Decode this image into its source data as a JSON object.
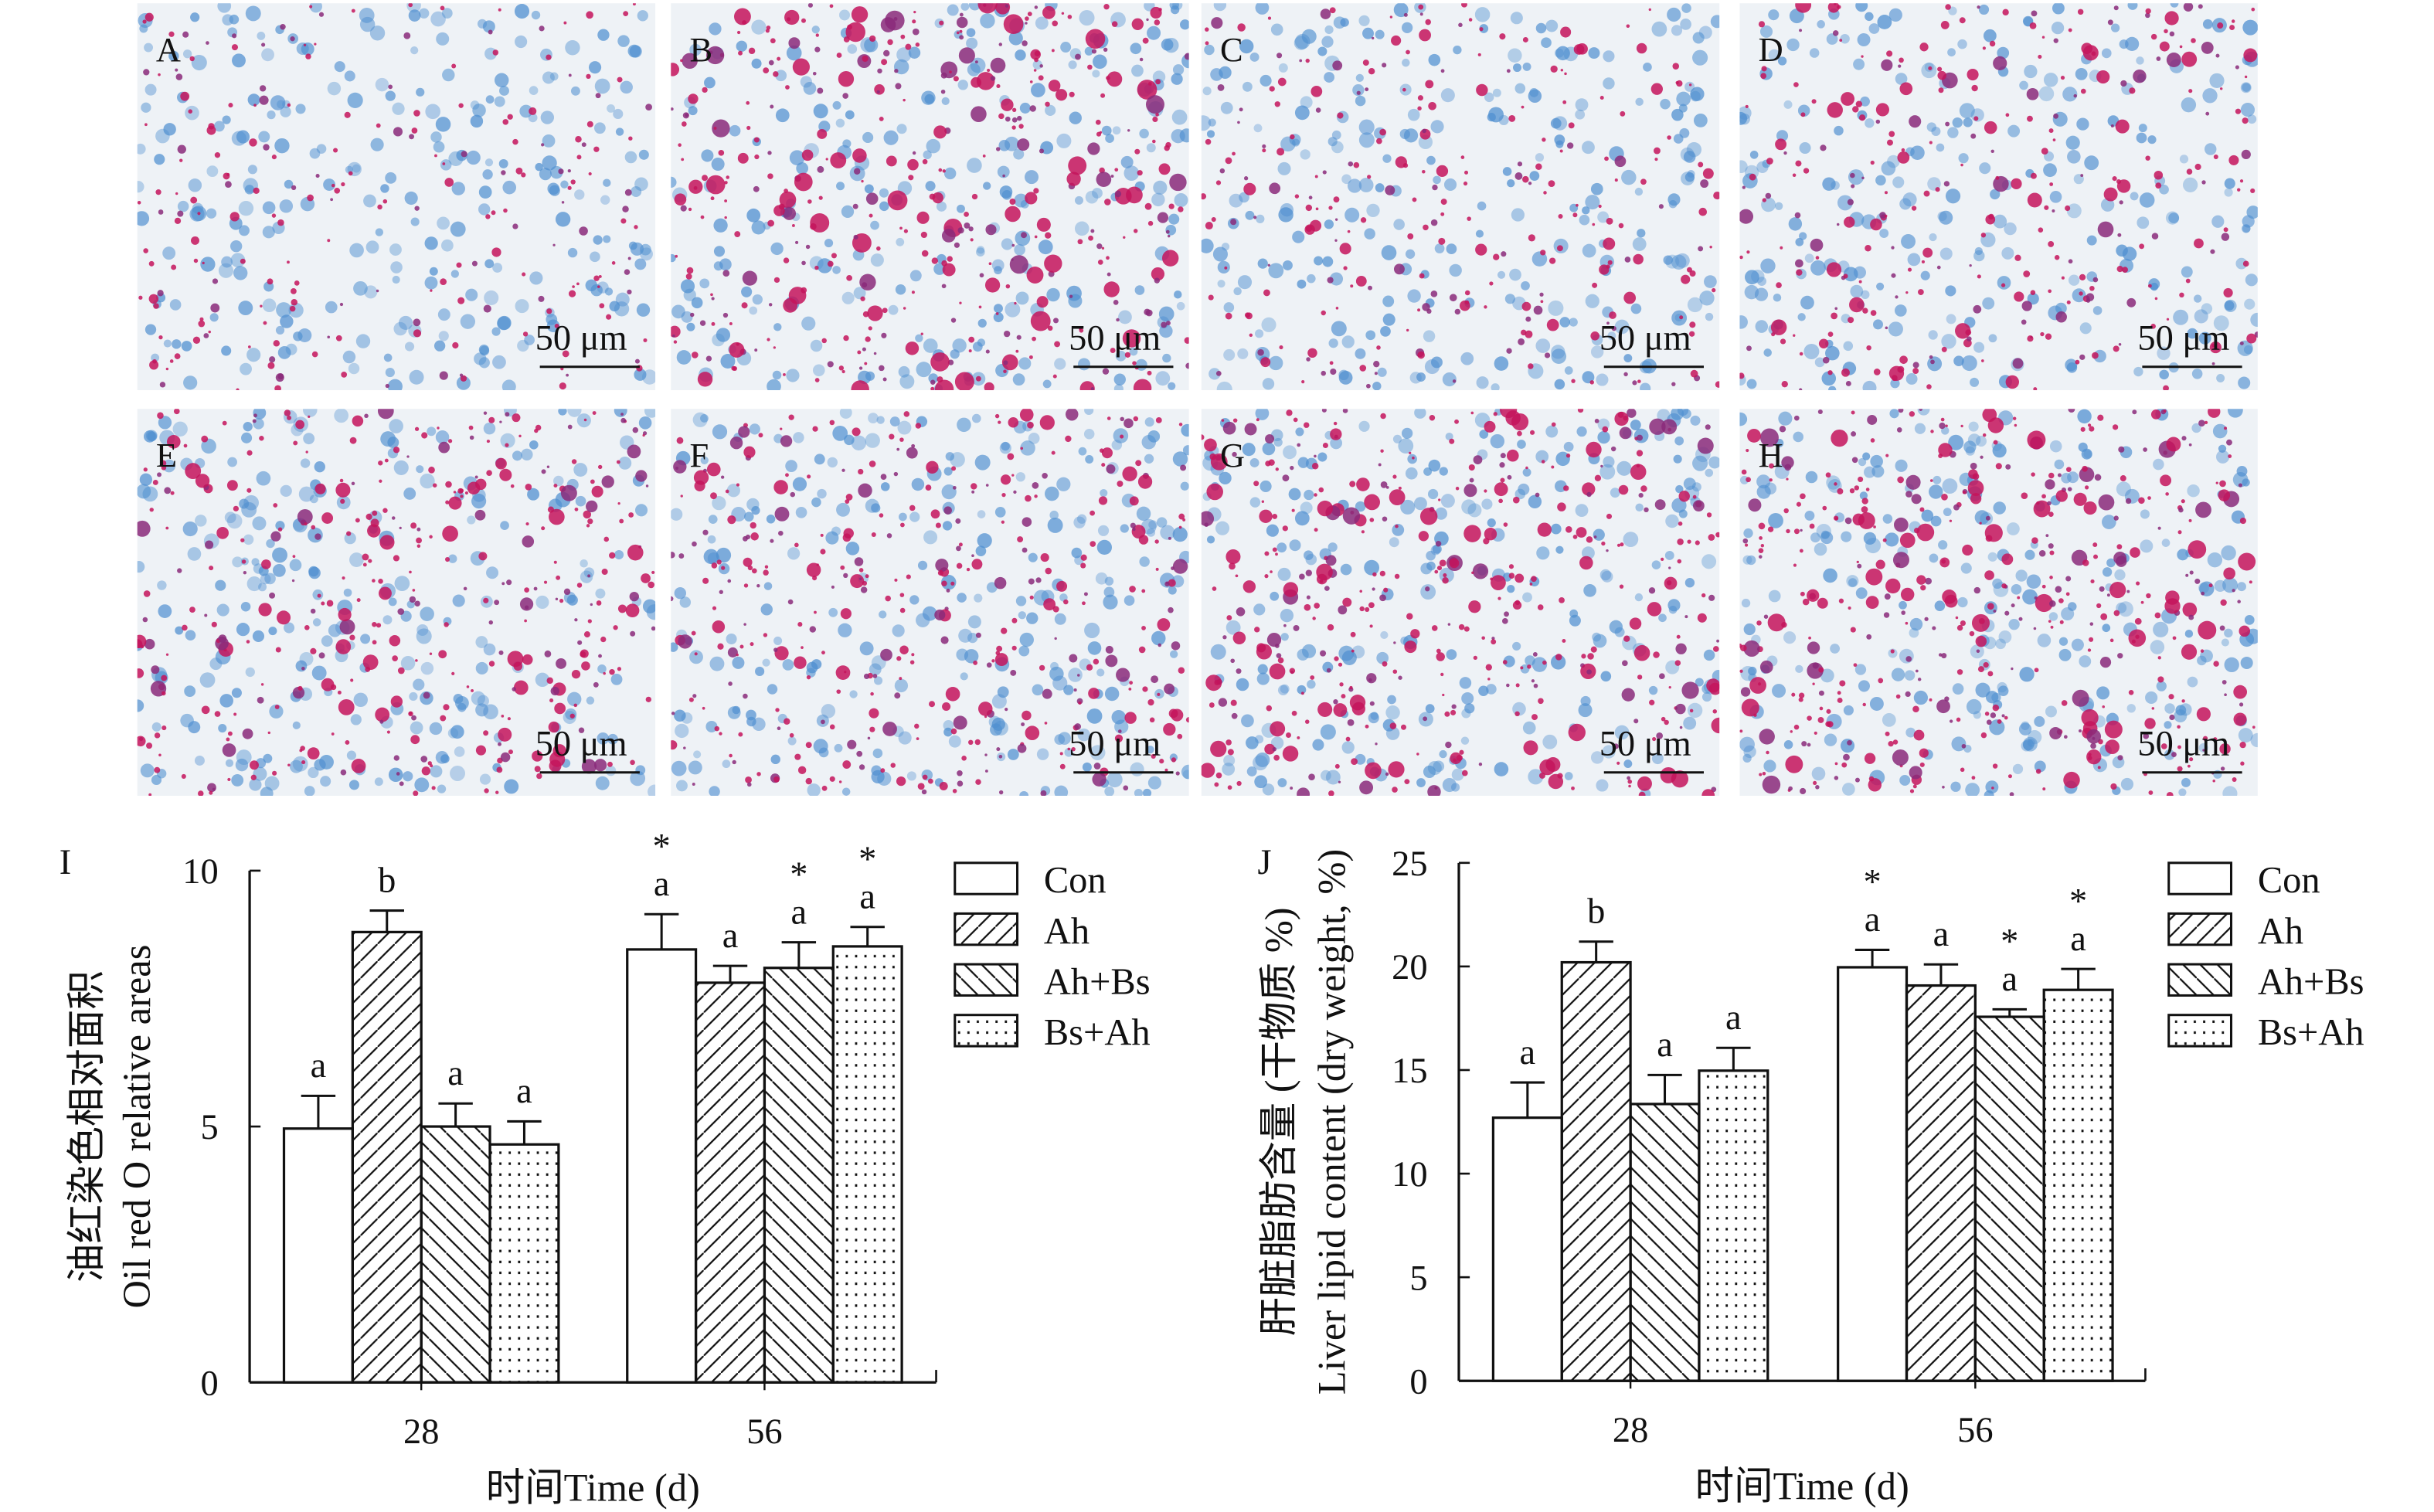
{
  "micrographs": {
    "panels": [
      "A",
      "B",
      "C",
      "D",
      "E",
      "F",
      "G",
      "H"
    ],
    "scale_bar_label": "50 μm",
    "colors": {
      "nucleus": "#4f8fd0",
      "lipid": "#c4145c",
      "background": "#eef2f6"
    }
  },
  "chart_data": [
    {
      "type": "bar",
      "panel_label": "I",
      "ylabel_cn": "油红染色相对面积",
      "ylabel_en": "Oil red O relative areas",
      "xlabel": "时间Time (d)",
      "categories": [
        "28",
        "56"
      ],
      "ylim": [
        0,
        10
      ],
      "yticks": [
        "0",
        "5",
        "10"
      ],
      "legend_position": "top-right",
      "series": [
        {
          "name": "Con",
          "fill": "white",
          "values": [
            4.96,
            8.46
          ],
          "errors": [
            0.64,
            0.69
          ],
          "letters": [
            "a",
            "a"
          ],
          "asterisk": [
            false,
            true
          ]
        },
        {
          "name": "Ah",
          "fill": "forward-hatch",
          "values": [
            8.8,
            7.81
          ],
          "errors": [
            0.42,
            0.33
          ],
          "letters": [
            "b",
            "a"
          ],
          "asterisk": [
            false,
            false
          ]
        },
        {
          "name": "Ah+Bs",
          "fill": "backward-hatch",
          "values": [
            5.0,
            8.1
          ],
          "errors": [
            0.45,
            0.5
          ],
          "letters": [
            "a",
            "a"
          ],
          "asterisk": [
            false,
            true
          ]
        },
        {
          "name": "Bs+Ah",
          "fill": "dots",
          "values": [
            4.65,
            8.52
          ],
          "errors": [
            0.45,
            0.38
          ],
          "letters": [
            "a",
            "a"
          ],
          "asterisk": [
            false,
            true
          ]
        }
      ],
      "asterisk_symbol": "*"
    },
    {
      "type": "bar",
      "panel_label": "J",
      "ylabel_cn": "肝脏脂肪含量 (干物质 %)",
      "ylabel_en": "Liver lipid content (dry weight, %)",
      "xlabel": "时间Time (d)",
      "categories": [
        "28",
        "56"
      ],
      "ylim": [
        0,
        25
      ],
      "yticks": [
        "0",
        "5",
        "10",
        "15",
        "20",
        "25"
      ],
      "legend_position": "top-right",
      "series": [
        {
          "name": "Con",
          "fill": "white",
          "values": [
            12.7,
            19.96
          ],
          "errors": [
            1.7,
            0.84
          ],
          "letters": [
            "a",
            "a"
          ],
          "asterisk": [
            false,
            true
          ]
        },
        {
          "name": "Ah",
          "fill": "forward-hatch",
          "values": [
            20.2,
            19.08
          ],
          "errors": [
            1.0,
            1.02
          ],
          "letters": [
            "b",
            "a"
          ],
          "asterisk": [
            false,
            false
          ]
        },
        {
          "name": "Ah+Bs",
          "fill": "backward-hatch",
          "values": [
            13.36,
            17.57
          ],
          "errors": [
            1.4,
            0.36
          ],
          "letters": [
            "a",
            "a"
          ],
          "asterisk": [
            false,
            true
          ]
        },
        {
          "name": "Bs+Ah",
          "fill": "dots",
          "values": [
            14.97,
            18.87
          ],
          "errors": [
            1.1,
            1.01
          ],
          "letters": [
            "a",
            "a"
          ],
          "asterisk": [
            false,
            true
          ]
        }
      ],
      "asterisk_symbol": "*"
    }
  ]
}
